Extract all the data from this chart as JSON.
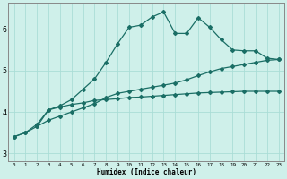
{
  "xlabel": "Humidex (Indice chaleur)",
  "background_color": "#cff0ea",
  "grid_color": "#aaddd6",
  "line_color": "#1a6e65",
  "xlim": [
    -0.5,
    23.5
  ],
  "ylim": [
    2.8,
    6.65
  ],
  "yticks": [
    3,
    4,
    5,
    6
  ],
  "xticks": [
    0,
    1,
    2,
    3,
    4,
    5,
    6,
    7,
    8,
    9,
    10,
    11,
    12,
    13,
    14,
    15,
    16,
    17,
    18,
    19,
    20,
    21,
    22,
    23
  ],
  "line1_x": [
    0,
    1,
    2,
    3,
    4,
    5,
    6,
    7,
    8,
    9,
    10,
    11,
    12,
    13,
    14,
    15,
    16,
    17,
    18,
    19,
    20,
    21,
    22,
    23
  ],
  "line1_y": [
    3.4,
    3.5,
    3.7,
    4.05,
    4.15,
    4.3,
    4.55,
    4.8,
    5.2,
    5.65,
    6.05,
    6.1,
    6.3,
    6.42,
    5.9,
    5.9,
    6.28,
    6.05,
    5.75,
    5.5,
    5.48,
    5.48,
    5.3,
    5.27
  ],
  "line2_x": [
    0,
    1,
    2,
    3,
    4,
    5,
    6,
    7,
    8,
    9,
    10,
    11,
    12,
    13,
    14,
    15,
    16,
    17,
    18,
    19,
    20,
    21,
    22,
    23
  ],
  "line2_y": [
    3.4,
    3.5,
    3.65,
    3.8,
    3.9,
    4.0,
    4.1,
    4.2,
    4.35,
    4.45,
    4.5,
    4.55,
    4.6,
    4.65,
    4.7,
    4.78,
    4.88,
    4.97,
    5.05,
    5.1,
    5.15,
    5.2,
    5.25,
    5.27
  ],
  "line3_x": [
    2,
    3,
    4,
    5,
    6,
    7,
    8,
    9,
    10,
    11,
    12,
    13,
    14,
    15,
    16,
    17,
    18,
    19,
    20,
    21,
    22,
    23
  ],
  "line3_y": [
    3.65,
    4.05,
    4.12,
    4.18,
    4.22,
    4.28,
    4.3,
    4.32,
    4.35,
    4.36,
    4.38,
    4.4,
    4.42,
    4.44,
    4.46,
    4.47,
    4.48,
    4.49,
    4.5,
    4.5,
    4.5,
    4.5
  ]
}
